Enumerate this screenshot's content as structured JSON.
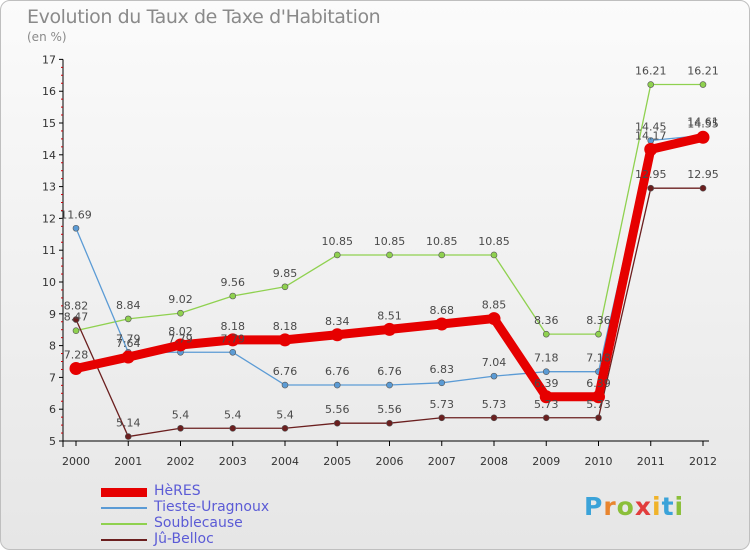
{
  "title": "Evolution du Taux de Taxe d'Habitation",
  "unit_label": "(en %)",
  "logo": {
    "text": "Proxiti",
    "letter_colors": [
      "#3ba3d9",
      "#e8852f",
      "#8bbf3a",
      "#e23d3d",
      "#f0b32a",
      "#3ba3d9",
      "#8bbf3a"
    ]
  },
  "chart_data": {
    "type": "line",
    "title": "Evolution du Taux de Taxe d'Habitation",
    "ylabel": "(en %)",
    "xlabel": "",
    "x": [
      "2000",
      "2001",
      "2002",
      "2003",
      "2004",
      "2005",
      "2006",
      "2007",
      "2008",
      "2009",
      "2010",
      "2011",
      "2012"
    ],
    "ylim": [
      5,
      17
    ],
    "yticks": [
      "5",
      "6",
      "7",
      "8",
      "9",
      "10",
      "11",
      "12",
      "13",
      "14",
      "15",
      "16",
      "17"
    ],
    "grid": false,
    "legend_position": "bottom-left",
    "series": [
      {
        "name": "HèRES",
        "color": "#e60000",
        "values": [
          7.28,
          7.64,
          8.02,
          8.18,
          8.18,
          8.34,
          8.51,
          8.68,
          8.85,
          6.39,
          6.39,
          14.17,
          14.55
        ],
        "labels": [
          "7.28",
          "7.64",
          "8.02",
          "8.18",
          "8.18",
          "8.34",
          "8.51",
          "8.68",
          "8.85",
          "6.39",
          "6.39",
          "14.17",
          "14.55"
        ]
      },
      {
        "name": "Tieste-Uragnoux",
        "color": "#5b9bd5",
        "values": [
          11.69,
          7.79,
          7.79,
          7.79,
          6.76,
          6.76,
          6.76,
          6.83,
          7.04,
          7.18,
          7.18,
          14.45,
          14.61
        ],
        "labels": [
          "11.69",
          "7.79",
          "7.79",
          "7.79",
          "6.76",
          "6.76",
          "6.76",
          "6.83",
          "7.04",
          "7.18",
          "7.18",
          "14.45",
          "14.61"
        ]
      },
      {
        "name": "Soublecause",
        "color": "#8fd14f",
        "values": [
          8.47,
          8.84,
          9.02,
          9.56,
          9.85,
          10.85,
          10.85,
          10.85,
          10.85,
          8.36,
          8.36,
          16.21,
          16.21
        ],
        "labels": [
          "8.47",
          "8.84",
          "9.02",
          "9.56",
          "9.85",
          "10.85",
          "10.85",
          "10.85",
          "10.85",
          "8.36",
          "8.36",
          "16.21",
          "16.21"
        ]
      },
      {
        "name": "Jû-Belloc",
        "color": "#6b1f1f",
        "values": [
          8.82,
          5.14,
          5.4,
          5.4,
          5.4,
          5.56,
          5.56,
          5.73,
          5.73,
          5.73,
          5.73,
          12.95,
          12.95
        ],
        "labels": [
          "8.82",
          "5.14",
          "5.4",
          "5.4",
          "5.4",
          "5.56",
          "5.56",
          "5.73",
          "5.73",
          "5.73",
          "5.73",
          "12.95",
          "12.95"
        ]
      }
    ],
    "legend": [
      "HèRES",
      "Tieste-Uragnoux",
      "Soublecause",
      "Jû-Belloc"
    ]
  }
}
